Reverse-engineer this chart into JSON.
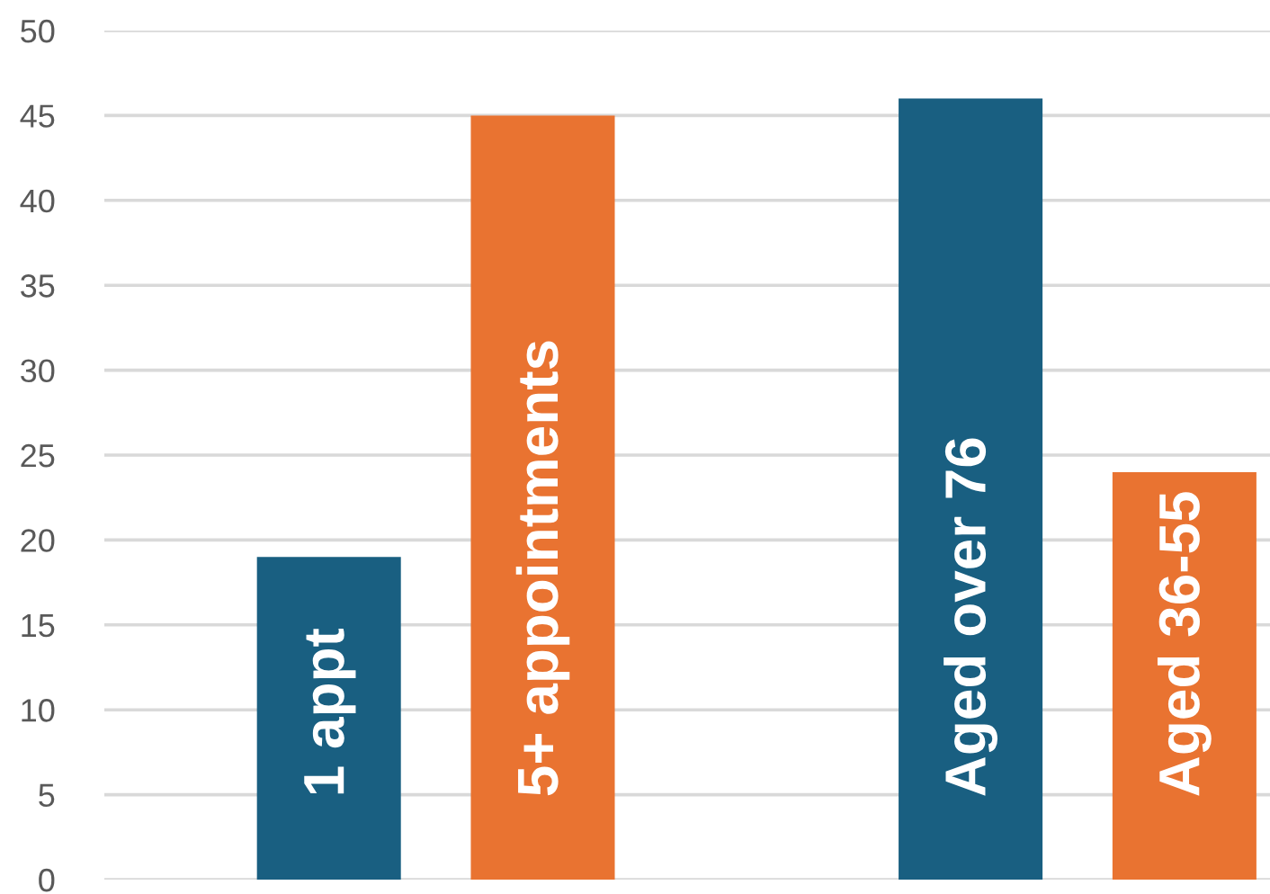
{
  "chart_data": {
    "type": "bar",
    "categories": [
      "1 appt",
      "5+ appointments",
      null,
      "Aged over 76",
      "Aged 36-55"
    ],
    "values": [
      19,
      45,
      null,
      46,
      24
    ],
    "colors": [
      "#195f81",
      "#e97331",
      null,
      "#195f81",
      "#e97331"
    ],
    "ylim": [
      0,
      50
    ],
    "yticks": [
      0,
      5,
      10,
      15,
      20,
      25,
      30,
      35,
      40,
      45,
      50
    ],
    "grid": "y"
  }
}
